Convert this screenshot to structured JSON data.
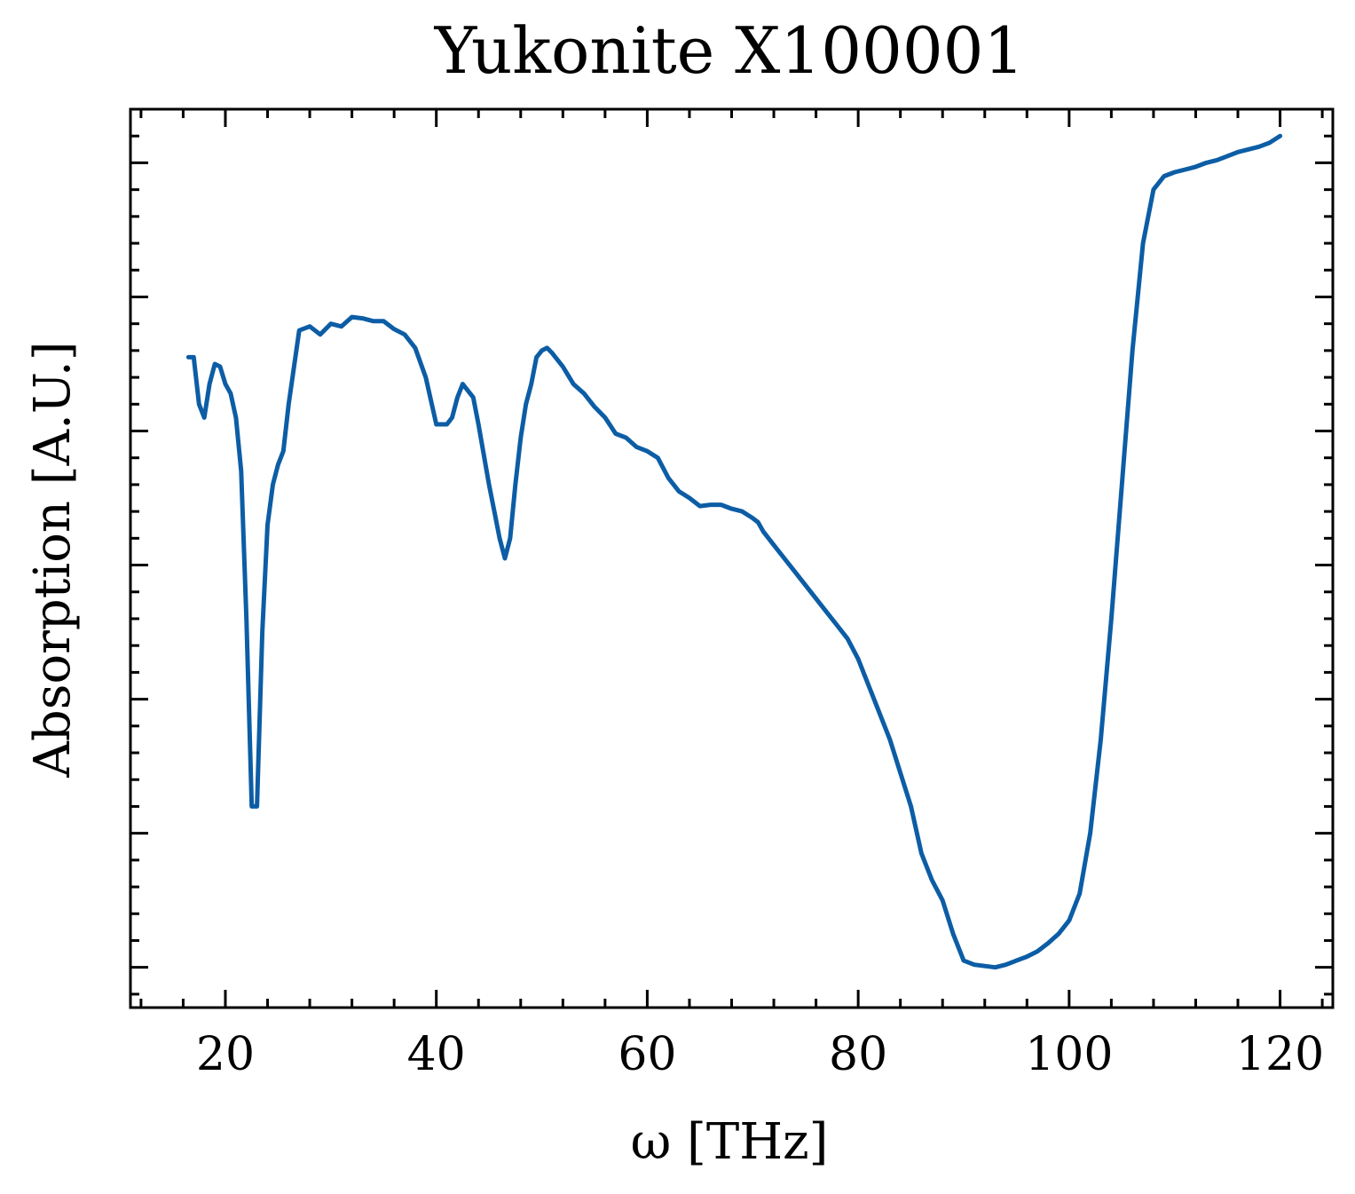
{
  "chart_data": {
    "type": "line",
    "title": "Yukonite X100001",
    "xlabel": "ω [THz]",
    "ylabel": "Absorption [A.U.]",
    "xlim": [
      11,
      125
    ],
    "ylim": [
      -0.3,
      6.4
    ],
    "xticks": [
      20,
      40,
      60,
      80,
      100,
      120
    ],
    "xtick_labels": [
      "20",
      "40",
      "60",
      "80",
      "100",
      "120"
    ],
    "yticks": [
      0,
      1,
      2,
      3,
      4,
      5,
      6
    ],
    "ytick_labels": [
      "",
      "",
      "",
      "",
      "",
      "",
      ""
    ],
    "grid": false,
    "series": [
      {
        "name": "Yukonite X100001",
        "color": "#0C5DA5",
        "x": [
          16.5,
          17,
          17.5,
          18,
          18.5,
          19,
          19.5,
          20,
          20.5,
          21,
          21.5,
          22,
          22.5,
          23,
          23.5,
          24,
          24.5,
          25,
          25.5,
          26,
          27,
          28,
          29,
          30,
          31,
          32,
          33,
          34,
          35,
          36,
          37,
          38,
          39,
          40,
          41,
          41.5,
          42,
          42.5,
          43,
          43.5,
          44,
          45,
          45.5,
          46,
          46.5,
          47,
          47.5,
          48,
          48.5,
          49,
          49.5,
          50,
          50.5,
          51,
          52,
          53,
          54,
          55,
          56,
          57,
          58,
          59,
          60,
          61,
          62,
          63,
          64,
          65,
          66,
          67,
          68,
          69,
          70,
          70.5,
          71,
          72,
          73,
          74,
          75,
          76,
          77,
          78,
          79,
          80,
          81,
          82,
          83,
          84,
          85,
          86,
          87,
          88,
          89,
          90,
          91,
          92,
          93,
          94,
          95,
          96,
          97,
          98,
          99,
          100,
          101,
          102,
          103,
          104,
          105,
          106,
          107,
          108,
          109,
          110,
          111,
          112,
          113,
          114,
          115,
          116,
          117,
          118,
          119,
          120
        ],
        "y": [
          4.55,
          4.55,
          4.2,
          4.1,
          4.35,
          4.5,
          4.48,
          4.35,
          4.28,
          4.1,
          3.7,
          2.6,
          1.2,
          1.2,
          2.5,
          3.3,
          3.6,
          3.75,
          3.85,
          4.2,
          4.75,
          4.78,
          4.72,
          4.8,
          4.78,
          4.85,
          4.84,
          4.82,
          4.82,
          4.76,
          4.72,
          4.62,
          4.4,
          4.05,
          4.05,
          4.1,
          4.25,
          4.35,
          4.3,
          4.25,
          4.05,
          3.6,
          3.4,
          3.2,
          3.05,
          3.2,
          3.6,
          3.95,
          4.2,
          4.35,
          4.55,
          4.6,
          4.62,
          4.58,
          4.48,
          4.35,
          4.28,
          4.18,
          4.1,
          3.98,
          3.95,
          3.88,
          3.85,
          3.8,
          3.65,
          3.55,
          3.5,
          3.44,
          3.45,
          3.45,
          3.42,
          3.4,
          3.35,
          3.32,
          3.25,
          3.15,
          3.05,
          2.95,
          2.85,
          2.75,
          2.65,
          2.55,
          2.45,
          2.3,
          2.1,
          1.9,
          1.7,
          1.45,
          1.2,
          0.85,
          0.65,
          0.5,
          0.25,
          0.05,
          0.02,
          0.01,
          0,
          0.02,
          0.05,
          0.08,
          0.12,
          0.18,
          0.25,
          0.35,
          0.55,
          1.0,
          1.7,
          2.6,
          3.6,
          4.6,
          5.4,
          5.8,
          5.9,
          5.93,
          5.95,
          5.97,
          6.0,
          6.02,
          6.05,
          6.08,
          6.1,
          6.12,
          6.15,
          6.2
        ],
        "dense_x": [
          16.5,
          17,
          17.5,
          18,
          18.5,
          19,
          19.5,
          20,
          20.5,
          21,
          21.5,
          22,
          22.5,
          23,
          23.5,
          24,
          24.5,
          25,
          25.5,
          26,
          27,
          28,
          29,
          30,
          31,
          32,
          33,
          34,
          35,
          36,
          37,
          38,
          39,
          40,
          41,
          41.5,
          42,
          42.5,
          43,
          43.5,
          44,
          45,
          45.5,
          46,
          46.5,
          47,
          47.5,
          48,
          48.5,
          49,
          49.5,
          50,
          50.5,
          51,
          52,
          53,
          54,
          55,
          56,
          57,
          58,
          59,
          60,
          61,
          62,
          63,
          64,
          65,
          66,
          67,
          68,
          69,
          70,
          70.5,
          71,
          72,
          73,
          74,
          75,
          76,
          77,
          78,
          79,
          80,
          81,
          82,
          83,
          84,
          85,
          86,
          87,
          88,
          89,
          90,
          91,
          92,
          93,
          94,
          95,
          96,
          97,
          98,
          99,
          100,
          101,
          102,
          103,
          104,
          105,
          106,
          107,
          108,
          109,
          110,
          111,
          112,
          113,
          114,
          115,
          116,
          117,
          118,
          119,
          120
        ],
        "dense_y": [
          4.55,
          4.55,
          4.2,
          4.1,
          4.35,
          4.5,
          4.48,
          4.35,
          4.28,
          4.1,
          3.7,
          2.6,
          1.2,
          1.2,
          2.5,
          3.3,
          3.6,
          3.75,
          3.85,
          4.2,
          4.75,
          4.78,
          4.72,
          4.8,
          4.78,
          4.85,
          4.84,
          4.82,
          4.82,
          4.76,
          4.72,
          4.62,
          4.4,
          4.05,
          4.05,
          4.1,
          4.25,
          4.35,
          4.3,
          4.25,
          4.05,
          3.6,
          3.4,
          3.2,
          3.05,
          3.2,
          3.6,
          3.95,
          4.2,
          4.35,
          4.55,
          4.6,
          4.62,
          4.58,
          4.48,
          4.35,
          4.28,
          4.18,
          4.1,
          3.98,
          3.95,
          3.88,
          3.85,
          3.8,
          3.65,
          3.55,
          3.5,
          3.44,
          3.45,
          3.45,
          3.42,
          3.4,
          3.35,
          3.32,
          3.25,
          3.15,
          3.05,
          2.95,
          2.85,
          2.75,
          2.65,
          2.55,
          2.45,
          2.3,
          2.1,
          1.9,
          1.7,
          1.45,
          1.2,
          0.85,
          0.65,
          0.5,
          0.25,
          0.05,
          0.02,
          0.01,
          0,
          0.02,
          0.05,
          0.08,
          0.12,
          0.18,
          0.25,
          0.35,
          0.55,
          1.0,
          1.7,
          2.6,
          3.6,
          4.6,
          5.4,
          5.8,
          5.9,
          5.93,
          5.95,
          5.97,
          6.0,
          6.02,
          6.05,
          6.08,
          6.1,
          6.12,
          6.15,
          6.2
        ]
      }
    ]
  }
}
